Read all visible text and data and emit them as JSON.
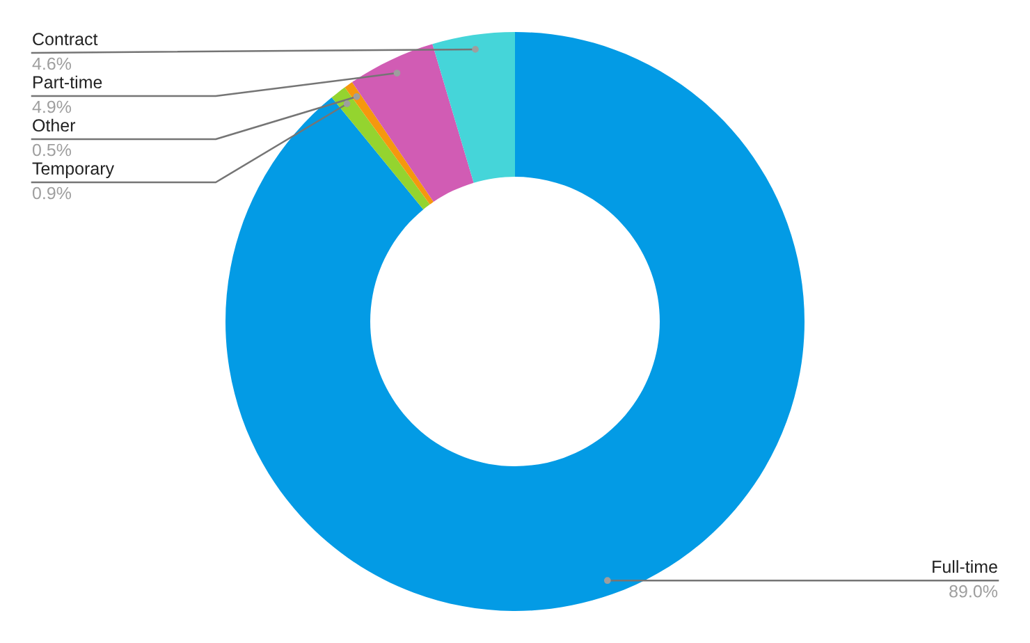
{
  "chart_data": {
    "type": "donut",
    "categories": [
      "Full-time",
      "Temporary",
      "Other",
      "Part-time",
      "Contract"
    ],
    "values": [
      89.0,
      0.9,
      0.5,
      4.9,
      4.6
    ],
    "value_labels": [
      "89.0%",
      "0.9%",
      "0.5%",
      "4.9%",
      "4.6%"
    ],
    "colors": [
      "#039be5",
      "#94d42f",
      "#f5980e",
      "#d15cb4",
      "#45d5d9"
    ],
    "legend": false
  }
}
